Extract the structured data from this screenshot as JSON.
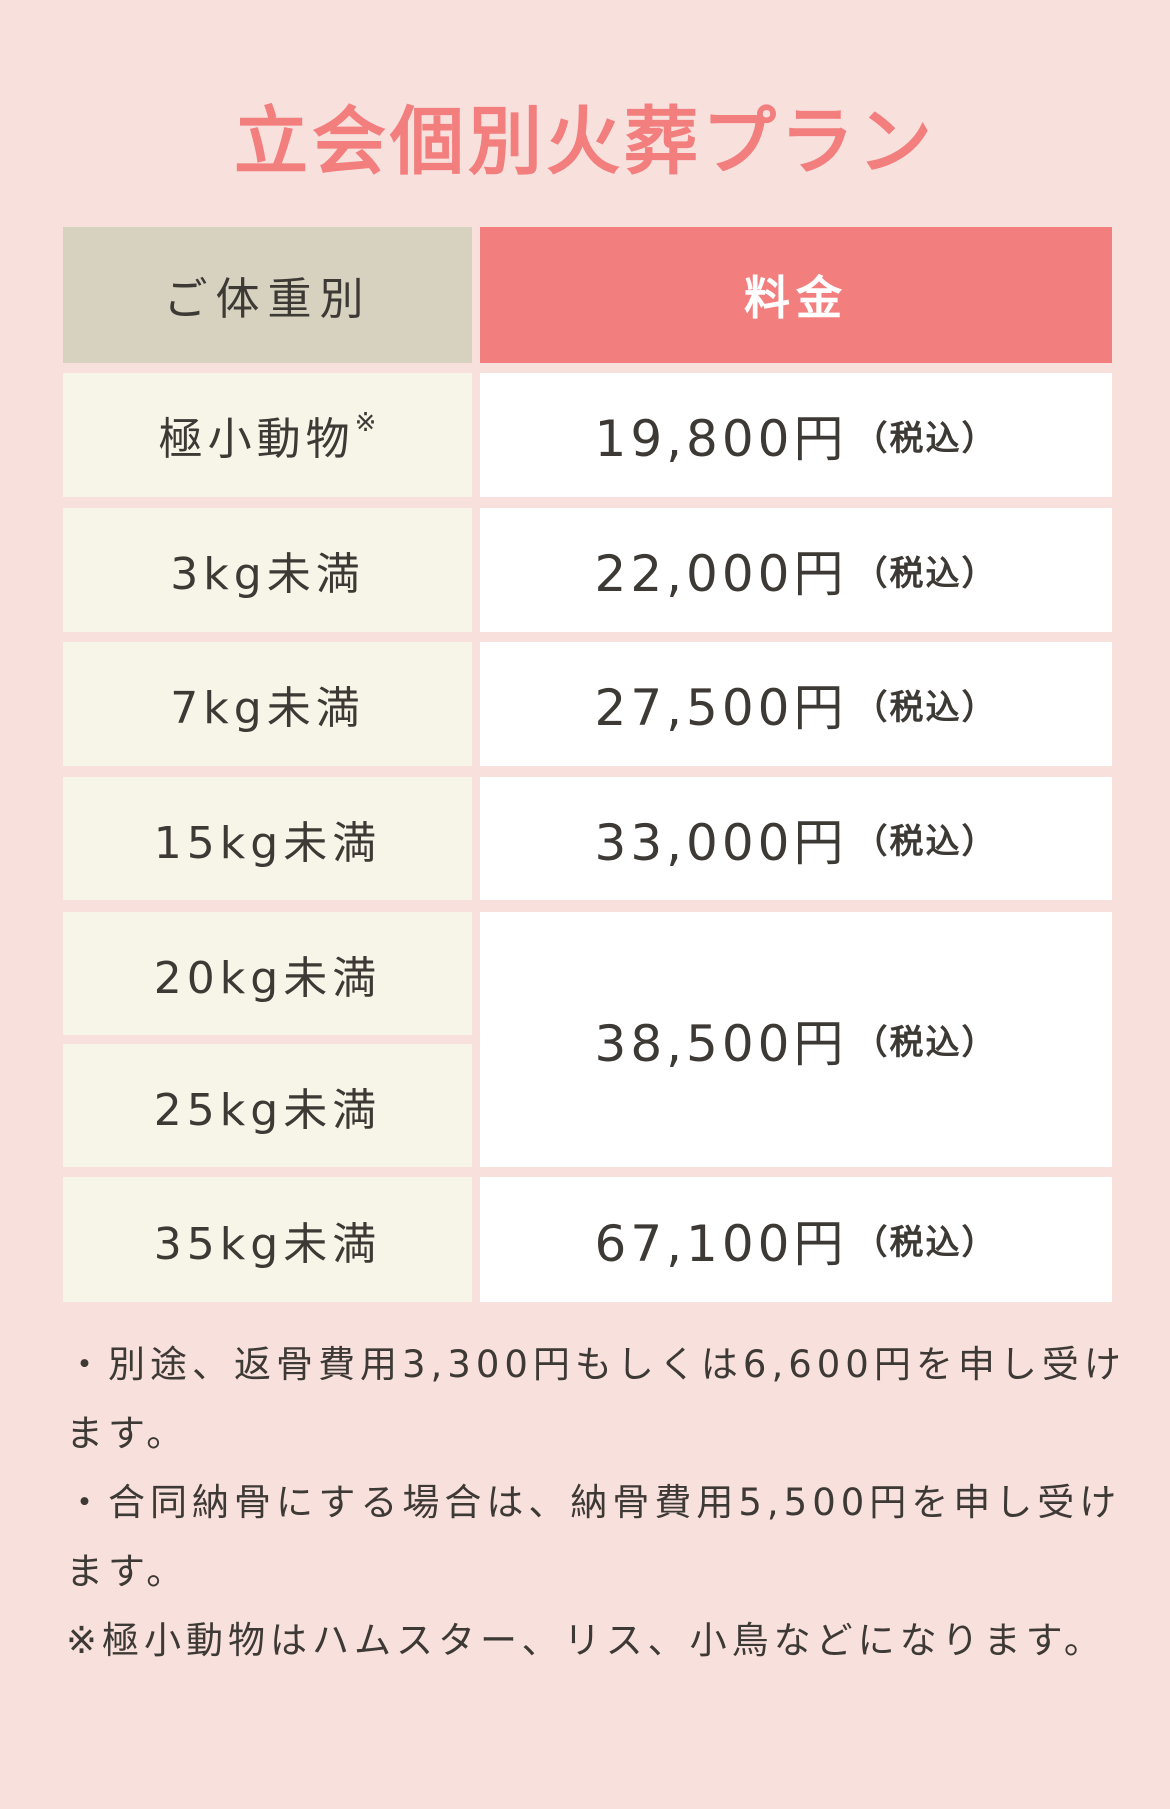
{
  "title": "立会個別火葬プラン",
  "table": {
    "headers": {
      "weight": "ご体重別",
      "price": "料金"
    },
    "tax_label": "（税込）",
    "footnote_mark": "※",
    "rows": [
      {
        "weight": "極小動物",
        "price": "19,800円"
      },
      {
        "weight": "3kg未満",
        "price": "22,000円"
      },
      {
        "weight": "7kg未満",
        "price": "27,500円"
      },
      {
        "weight": "15kg未満",
        "price": "33,000円"
      },
      {
        "weight": "20kg未満",
        "price": "38,500円"
      },
      {
        "weight": "25kg未満",
        "price": "38,500円"
      },
      {
        "weight": "35kg未満",
        "price": "67,100円"
      }
    ]
  },
  "notes": [
    "・別途、返骨費用3,300円もしくは6,600円を申し受けます。",
    "・合同納骨にする場合は、納骨費用5,500円を申し受けます。",
    "※極小動物はハムスター、リス、小鳥などになります。"
  ],
  "colors": {
    "background": "#f8e0dd",
    "accent": "#f27e7e",
    "header_weight": "#d6d2bf",
    "label_cell": "#f7f4e8",
    "text": "#3d3935"
  }
}
